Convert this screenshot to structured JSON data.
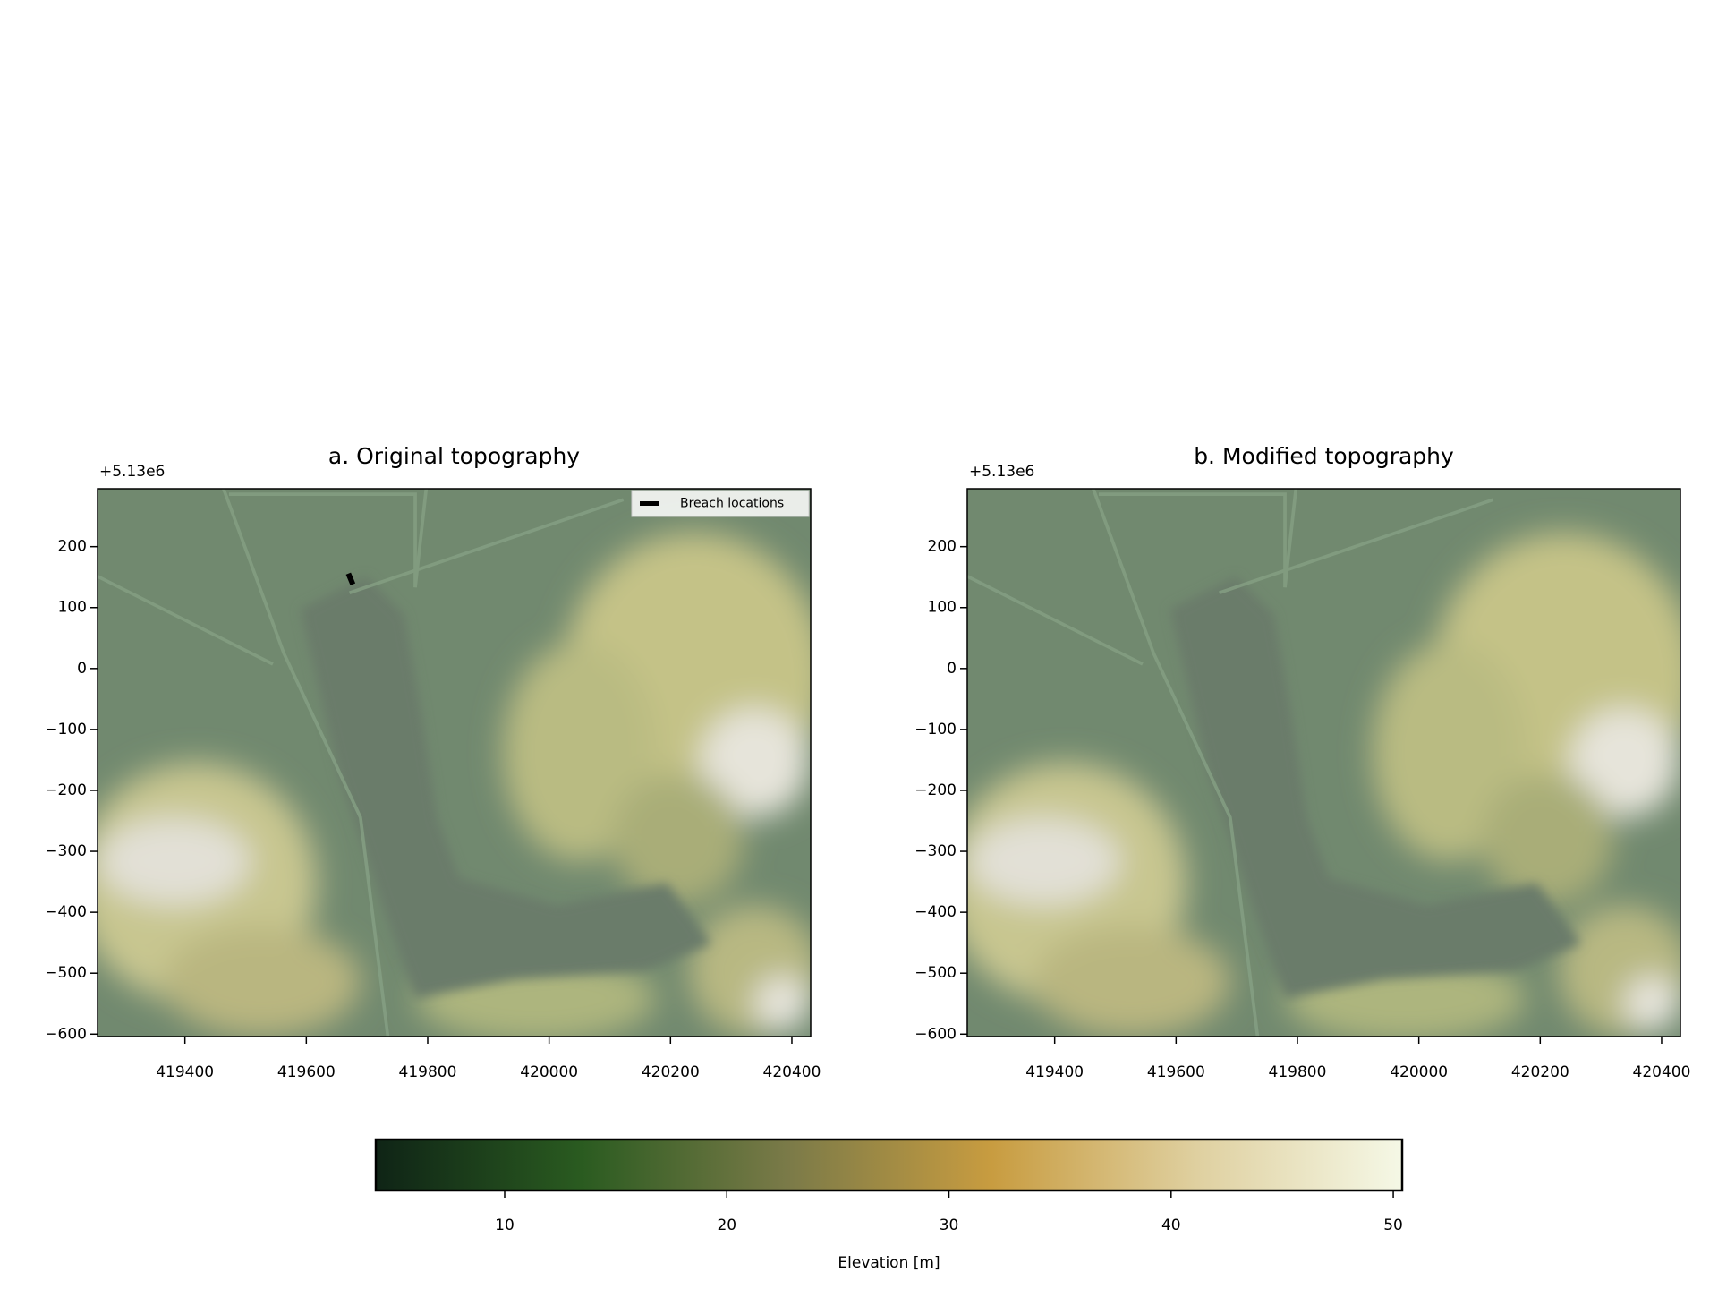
{
  "chart_data": [
    {
      "type": "map",
      "title": "a. Original topography",
      "offset_text": "+5.13e6",
      "xlim": [
        419256,
        420431
      ],
      "ylim": [
        -604,
        295
      ],
      "xticks": [
        419400,
        419600,
        419800,
        420000,
        420200,
        420400
      ],
      "yticks": [
        {
          "value": -600,
          "label": "−600"
        },
        {
          "value": -500,
          "label": "−500"
        },
        {
          "value": -400,
          "label": "−400"
        },
        {
          "value": -300,
          "label": "−300"
        },
        {
          "value": -200,
          "label": "−200"
        },
        {
          "value": -100,
          "label": "−100"
        },
        0,
        100,
        200
      ],
      "series": [
        {
          "name": "Breach locations",
          "color": "#000000",
          "x": [
            419673
          ],
          "y": [
            147
          ]
        }
      ],
      "legend": "upper right"
    },
    {
      "type": "map",
      "title": "b. Modified topography",
      "offset_text": "+5.13e6",
      "xlim": [
        419256,
        420431
      ],
      "ylim": [
        -604,
        295
      ],
      "xticks": [
        419400,
        419600,
        419800,
        420000,
        420200,
        420400
      ],
      "yticks": [
        {
          "value": -600,
          "label": "−600"
        },
        {
          "value": -500,
          "label": "−500"
        },
        {
          "value": -400,
          "label": "−400"
        },
        {
          "value": -300,
          "label": "−300"
        },
        {
          "value": -200,
          "label": "−200"
        },
        {
          "value": -100,
          "label": "−100"
        },
        0,
        100,
        200
      ]
    },
    {
      "type": "colorbar",
      "label": "Elevation [m]",
      "xlim": [
        4.2,
        50.4
      ],
      "xticks": [
        10,
        20,
        30,
        40,
        50
      ],
      "colors": [
        "#0f2416",
        "#2a5b20",
        "#7a7a48",
        "#c89c40",
        "#dfd0a0",
        "#f5f8e6"
      ]
    }
  ]
}
